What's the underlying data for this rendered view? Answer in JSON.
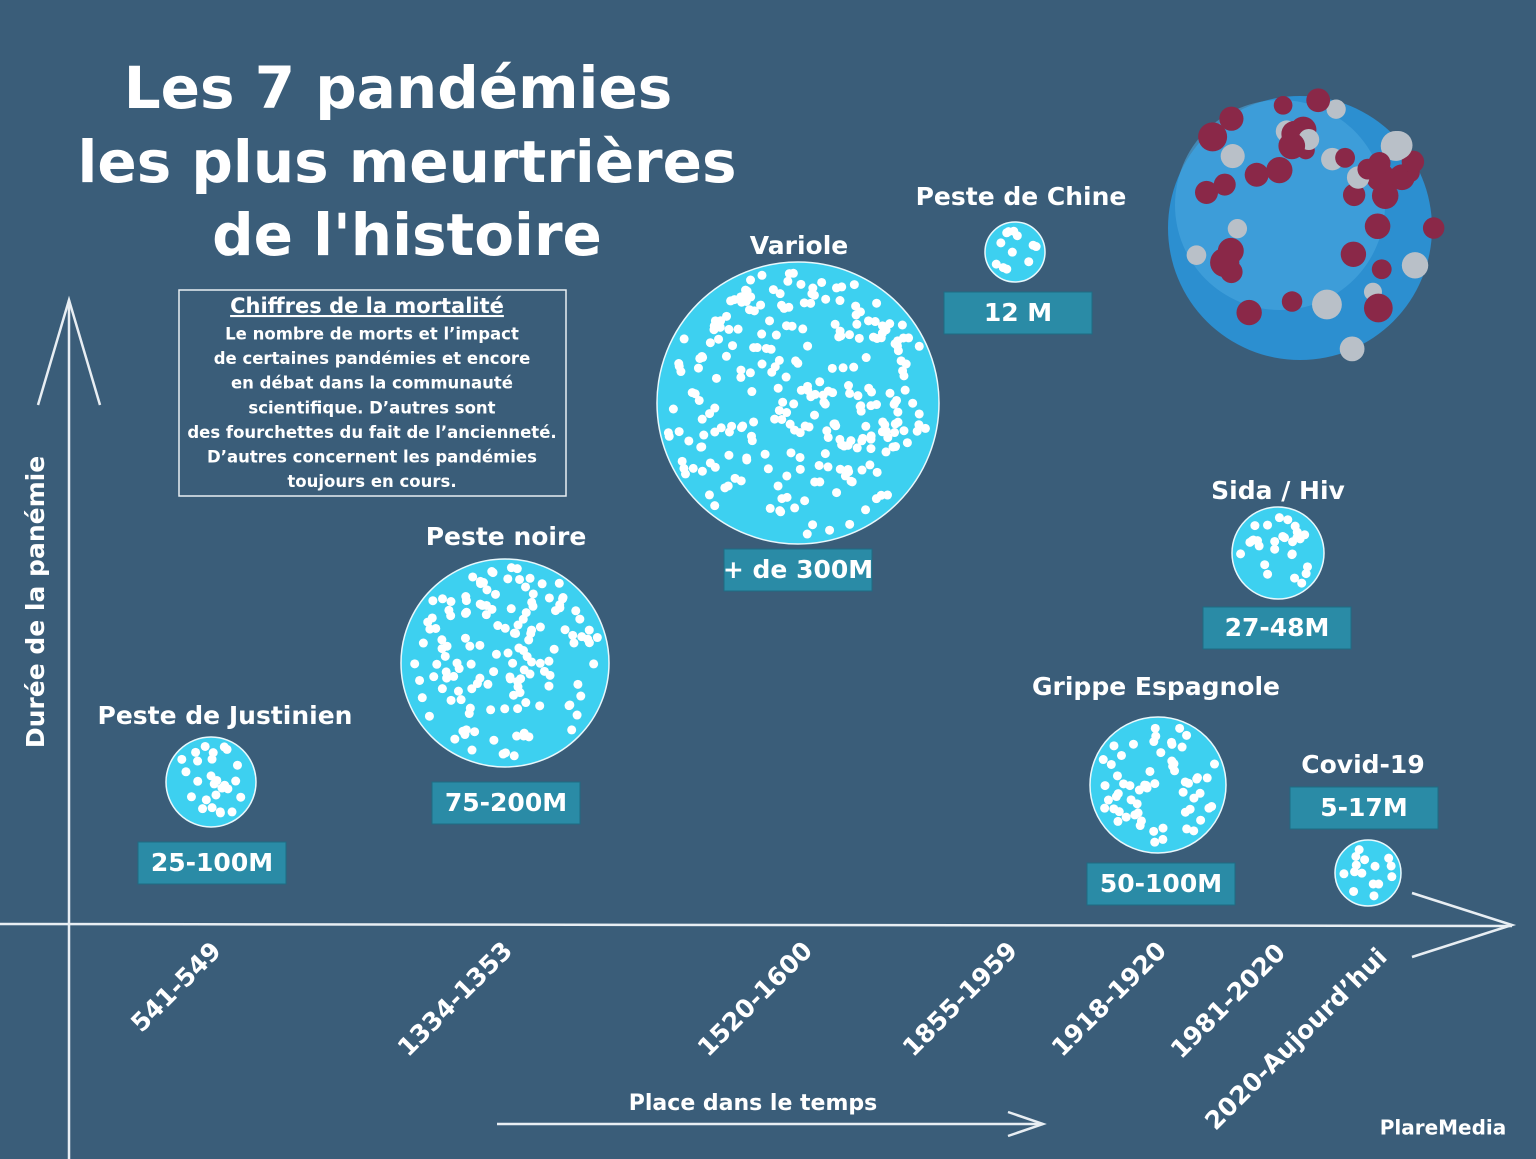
{
  "title": [
    "Les 7 pandémies",
    "les plus meurtrières",
    "de l'histoire"
  ],
  "note": {
    "heading": "Chiffres de la mortalité",
    "lines": [
      "Le nombre de morts et l’impact",
      "de certaines pandémies et encore",
      "en débat dans la communauté",
      "scientifique. D’autres sont",
      "des fourchettes du fait de l’ancienneté.",
      "D’autres concernent les pandémies",
      "toujours en cours."
    ]
  },
  "y_axis_label": "Durée de la panémie",
  "x_axis_label": "Place dans le temps",
  "credit": "PlareMedia",
  "pandemics": [
    {
      "name": "Peste de Justinien",
      "deaths": "25-100M",
      "period": "541-549"
    },
    {
      "name": "Peste noire",
      "deaths": "75-200M",
      "period": "1334-1353"
    },
    {
      "name": "Variole",
      "deaths": "+ de 300M",
      "period": "1520-1600"
    },
    {
      "name": "Peste de Chine",
      "deaths": "12 M",
      "period": "1855-1959"
    },
    {
      "name": "Grippe Espagnole",
      "deaths": "50-100M",
      "period": "1918-1920"
    },
    {
      "name": "Sida / Hiv",
      "deaths": "27-48M",
      "period": "1981-2020"
    },
    {
      "name": "Covid-19",
      "deaths": "5-17M",
      "period": "2020-Aujourd’hui"
    }
  ]
}
